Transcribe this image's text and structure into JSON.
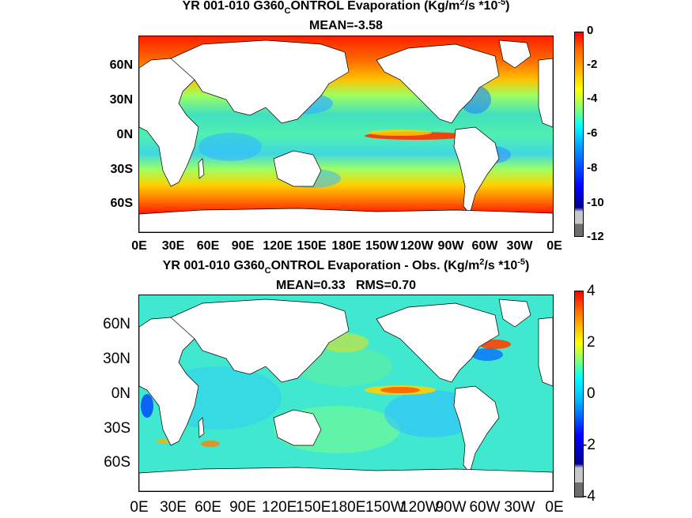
{
  "top": {
    "title_main": "YR 001-010 G360",
    "title_sub": "C",
    "title_rest": "ONTROL  Evaporation (Kg/m",
    "title_sup": "2",
    "title_end": "/s *10",
    "title_sup2": "-5",
    "title_close": ")",
    "subtitle": "MEAN=-3.58",
    "lat_labels": [
      "60N",
      "30N",
      "0N",
      "30S",
      "60S"
    ],
    "lon_labels": [
      "0E",
      "30E",
      "60E",
      "90E",
      "120E",
      "150E",
      "180E",
      "150W",
      "120W",
      "90W",
      "60W",
      "30W",
      "0E"
    ],
    "colorbar_ticks": [
      "0",
      "-2",
      "-4",
      "-6",
      "-8",
      "-10",
      "-12"
    ]
  },
  "bottom": {
    "title_main": "YR 001-010 G360",
    "title_sub": "C",
    "title_rest": "ONTROL Evaporation - Obs. (Kg/m",
    "title_sup": "2",
    "title_end": "/s *10",
    "title_sup2": "-5",
    "title_close": ")",
    "subtitle": "MEAN=0.33   RMS=0.70",
    "lat_labels": [
      "60N",
      "30N",
      "0N",
      "30S",
      "60S"
    ],
    "lon_labels": [
      "0E",
      "30E",
      "60E",
      "90E",
      "120E",
      "150E",
      "180E",
      "150W",
      "120W",
      "90W",
      "60W",
      "30W",
      "0E"
    ],
    "colorbar_ticks": [
      "4",
      "2",
      "0",
      "-2",
      "-4"
    ]
  },
  "colors": {
    "land": "#ffffff",
    "colormap": [
      "#6e6e6e",
      "#c8c8c8",
      "#00008f",
      "#0000ff",
      "#0080ff",
      "#00ffff",
      "#80ff80",
      "#ffff00",
      "#ff8000",
      "#ff0000",
      "#df0000"
    ]
  }
}
